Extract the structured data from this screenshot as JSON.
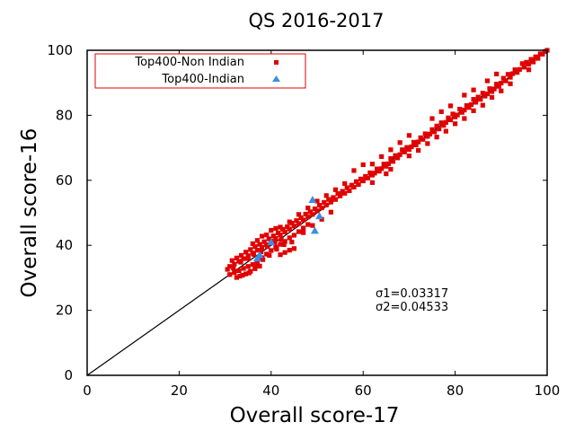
{
  "chart_data": {
    "type": "scatter",
    "title": "QS 2016-2017",
    "xlabel": "Overall score-17",
    "ylabel": "Overall score-16",
    "xlim": [
      0,
      100
    ],
    "ylim": [
      0,
      100
    ],
    "xticks": [
      0,
      20,
      40,
      60,
      80,
      100
    ],
    "yticks": [
      0,
      20,
      40,
      60,
      80,
      100
    ],
    "grid": false,
    "legend_position": "top-left",
    "reference_line": {
      "from": [
        0,
        0
      ],
      "to": [
        100,
        100
      ],
      "color": "#000000"
    },
    "annotations": [
      "σ1=0.03317",
      "σ2=0.04533"
    ],
    "series": [
      {
        "name": "Top400-Non Indian",
        "marker": "circle",
        "color": "#e00000",
        "points": [
          [
            100,
            100
          ],
          [
            99.5,
            99.6
          ],
          [
            99,
            98.8
          ],
          [
            98.5,
            98.9
          ],
          [
            98,
            97.5
          ],
          [
            97.5,
            98.0
          ],
          [
            97,
            96.4
          ],
          [
            96.5,
            97.2
          ],
          [
            96,
            95.7
          ],
          [
            95.5,
            96.3
          ],
          [
            95,
            94.8
          ],
          [
            94.6,
            95.9
          ],
          [
            94,
            94.1
          ],
          [
            93.5,
            93.2
          ],
          [
            93,
            94.0
          ],
          [
            92.5,
            92.8
          ],
          [
            92,
            91.7
          ],
          [
            91.5,
            92.6
          ],
          [
            91,
            90.6
          ],
          [
            90.5,
            91.4
          ],
          [
            90,
            89.9
          ],
          [
            89.5,
            88.9
          ],
          [
            89,
            89.6
          ],
          [
            88.5,
            88.1
          ],
          [
            88,
            87.3
          ],
          [
            87.5,
            88.2
          ],
          [
            87,
            86.6
          ],
          [
            86.5,
            85.9
          ],
          [
            86,
            86.8
          ],
          [
            85.5,
            84.9
          ],
          [
            85,
            85.6
          ],
          [
            84.5,
            84.0
          ],
          [
            84,
            84.9
          ],
          [
            83.5,
            83.3
          ],
          [
            83,
            82.4
          ],
          [
            82.5,
            83.0
          ],
          [
            82,
            81.6
          ],
          [
            81.5,
            80.9
          ],
          [
            81,
            81.9
          ],
          [
            80.5,
            80.1
          ],
          [
            80,
            79.5
          ],
          [
            79.5,
            80.4
          ],
          [
            79,
            78.6
          ],
          [
            78.5,
            79.2
          ],
          [
            78,
            77.8
          ],
          [
            77.5,
            76.9
          ],
          [
            77,
            77.7
          ],
          [
            76.5,
            75.8
          ],
          [
            76,
            76.7
          ],
          [
            75.5,
            74.9
          ],
          [
            75,
            75.6
          ],
          [
            74.5,
            74.2
          ],
          [
            74,
            73.5
          ],
          [
            73.5,
            74.3
          ],
          [
            73,
            72.6
          ],
          [
            72.5,
            73.1
          ],
          [
            72,
            71.8
          ],
          [
            71.5,
            70.9
          ],
          [
            71,
            71.7
          ],
          [
            70.5,
            70.3
          ],
          [
            70,
            69.5
          ],
          [
            69.5,
            70.1
          ],
          [
            69,
            68.7
          ],
          [
            68.5,
            69.4
          ],
          [
            68,
            67.9
          ],
          [
            67.5,
            66.9
          ],
          [
            67,
            67.6
          ],
          [
            66.5,
            65.8
          ],
          [
            66,
            66.7
          ],
          [
            65.5,
            65.1
          ],
          [
            65,
            64.3
          ],
          [
            64.5,
            65.0
          ],
          [
            64,
            63.6
          ],
          [
            63.5,
            62.8
          ],
          [
            63,
            63.5
          ],
          [
            62.5,
            62.2
          ],
          [
            62,
            61.6
          ],
          [
            61.5,
            62.3
          ],
          [
            61,
            60.7
          ],
          [
            60.5,
            61.2
          ],
          [
            60,
            59.8
          ],
          [
            59.5,
            60.4
          ],
          [
            59,
            58.7
          ],
          [
            58.5,
            59.6
          ],
          [
            58,
            57.9
          ],
          [
            57.5,
            58.5
          ],
          [
            57,
            56.8
          ],
          [
            56.5,
            57.7
          ],
          [
            56,
            56.0
          ],
          [
            55.5,
            56.6
          ],
          [
            55,
            55.2
          ],
          [
            54.5,
            55.9
          ],
          [
            54,
            54.1
          ],
          [
            53.5,
            54.7
          ],
          [
            53,
            53.3
          ],
          [
            52.5,
            54.1
          ],
          [
            52,
            52.4
          ],
          [
            51.5,
            53.2
          ],
          [
            51,
            51.5
          ],
          [
            50.5,
            52.3
          ],
          [
            50,
            50.6
          ],
          [
            49.5,
            51.2
          ],
          [
            49,
            49.5
          ],
          [
            48.5,
            50.3
          ],
          [
            48,
            48.7
          ],
          [
            47.5,
            49.6
          ],
          [
            47,
            47.8
          ],
          [
            46.5,
            48.5
          ],
          [
            46,
            46.7
          ],
          [
            45.5,
            47.6
          ],
          [
            45,
            45.9
          ],
          [
            44.5,
            46.8
          ],
          [
            44,
            45.0
          ],
          [
            43.5,
            45.7
          ],
          [
            43,
            44.1
          ],
          [
            42.5,
            44.9
          ],
          [
            42,
            43.2
          ],
          [
            41.5,
            43.8
          ],
          [
            41,
            42.1
          ],
          [
            40.5,
            42.9
          ],
          [
            40,
            41.3
          ],
          [
            39.5,
            42.0
          ],
          [
            39,
            40.2
          ],
          [
            38.5,
            41.1
          ],
          [
            38,
            39.4
          ],
          [
            37.5,
            40.3
          ],
          [
            37,
            38.5
          ],
          [
            36.5,
            39.6
          ],
          [
            36,
            37.6
          ],
          [
            35.5,
            38.7
          ],
          [
            35,
            36.8
          ],
          [
            34.5,
            37.9
          ],
          [
            34,
            35.9
          ],
          [
            33.5,
            36.9
          ],
          [
            33,
            35.1
          ],
          [
            32.5,
            36.1
          ],
          [
            32,
            34.2
          ],
          [
            31.5,
            35.3
          ],
          [
            31,
            33.5
          ],
          [
            30.5,
            32.6
          ],
          [
            31,
            31.0
          ],
          [
            32,
            31.6
          ],
          [
            33,
            32.2
          ],
          [
            34,
            32.9
          ],
          [
            35,
            33.5
          ],
          [
            36,
            34.1
          ],
          [
            37,
            35.0
          ],
          [
            38,
            36.2
          ],
          [
            39,
            37.3
          ],
          [
            40,
            38.4
          ],
          [
            41,
            39.4
          ],
          [
            42,
            40.3
          ],
          [
            43,
            41.2
          ],
          [
            44,
            42.3
          ],
          [
            45,
            43.1
          ],
          [
            46,
            44.2
          ],
          [
            47,
            45.3
          ],
          [
            48,
            46.4
          ],
          [
            34.5,
            31.2
          ],
          [
            35.5,
            32.0
          ],
          [
            36.5,
            32.8
          ],
          [
            37.5,
            33.6
          ],
          [
            33.2,
            30.5
          ],
          [
            36,
            40.5
          ],
          [
            38,
            42.8
          ],
          [
            40,
            44.6
          ],
          [
            42,
            45.6
          ],
          [
            37,
            41.5
          ],
          [
            39,
            43.2
          ],
          [
            41,
            45.2
          ],
          [
            44,
            47.2
          ],
          [
            46,
            49.5
          ],
          [
            48,
            51.5
          ],
          [
            50,
            53.6
          ],
          [
            52,
            55.3
          ],
          [
            54,
            57.1
          ],
          [
            56,
            59.0
          ],
          [
            45,
            39.0
          ],
          [
            44,
            38.5
          ],
          [
            43,
            37.8
          ],
          [
            42,
            37.1
          ],
          [
            44.5,
            41.0
          ],
          [
            47,
            43.9
          ],
          [
            49,
            46.1
          ],
          [
            51,
            48.0
          ],
          [
            53,
            50.2
          ],
          [
            62,
            65.0
          ],
          [
            64,
            67.3
          ],
          [
            66,
            69.4
          ],
          [
            68,
            71.6
          ],
          [
            70,
            73.8
          ],
          [
            75,
            79.0
          ],
          [
            77,
            81.1
          ],
          [
            79,
            82.9
          ],
          [
            82,
            86.2
          ],
          [
            84,
            87.8
          ],
          [
            87,
            90.6
          ],
          [
            89,
            92.7
          ],
          [
            62,
            59.3
          ],
          [
            66,
            63.4
          ],
          [
            70,
            67.5
          ],
          [
            74,
            71.3
          ],
          [
            78,
            75.1
          ],
          [
            82,
            79.0
          ],
          [
            86,
            83.1
          ],
          [
            90,
            87.5
          ],
          [
            58,
            63.0
          ],
          [
            60,
            64.8
          ],
          [
            65,
            62.0
          ],
          [
            72,
            69.2
          ],
          [
            76,
            73.3
          ],
          [
            80,
            77.4
          ],
          [
            84,
            81.4
          ],
          [
            88,
            85.5
          ],
          [
            92,
            89.7
          ],
          [
            96,
            94.0
          ],
          [
            32.5,
            30.1
          ],
          [
            33.8,
            30.8
          ],
          [
            35.2,
            31.5
          ],
          [
            36.8,
            34.2
          ],
          [
            38.2,
            35.6
          ],
          [
            39.6,
            36.9
          ],
          [
            41.2,
            38.8
          ],
          [
            42.8,
            40.2
          ],
          [
            31.8,
            33.0
          ],
          [
            33.4,
            34.8
          ],
          [
            35.0,
            35.9
          ],
          [
            36.2,
            37.2
          ],
          [
            37.8,
            38.0
          ],
          [
            39.2,
            39.6
          ],
          [
            40.8,
            40.7
          ],
          [
            42.2,
            41.8
          ]
        ]
      },
      {
        "name": "Top400-Indian",
        "marker": "triangle",
        "color": "#3a8ee6",
        "points": [
          [
            49,
            54.0
          ],
          [
            50.5,
            49.0
          ],
          [
            49.5,
            44.5
          ],
          [
            40,
            41.0
          ],
          [
            37.5,
            37.0
          ],
          [
            37,
            36.0
          ]
        ]
      }
    ]
  }
}
